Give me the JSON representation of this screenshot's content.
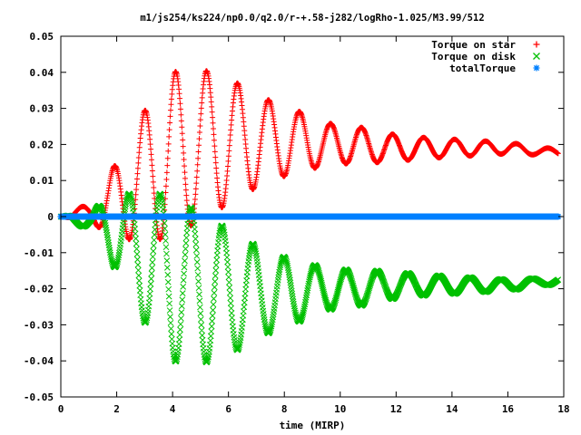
{
  "chart_data": {
    "type": "scatter",
    "title": "m1/js254/ks224/np0.0/q2.0/r-+.58-j282/logRho-1.025/M3.99/512",
    "xlabel": "time (MIRP)",
    "ylabel": "",
    "xlim": [
      0,
      18
    ],
    "ylim": [
      -0.05,
      0.05
    ],
    "x_ticks": [
      "0",
      "2",
      "4",
      "6",
      "8",
      "10",
      "12",
      "14",
      "16",
      "18"
    ],
    "y_ticks": [
      "0.05",
      "0.04",
      "0.03",
      "0.02",
      "0.01",
      "0",
      "-0.01",
      "-0.02",
      "-0.03",
      "-0.04",
      "-0.05"
    ],
    "grid": false,
    "legend_position": "top-right",
    "series": [
      {
        "name": "Torque on star",
        "marker": "+",
        "color": "#ff0000",
        "envelope": {
          "period": 1.11,
          "t": [
            0,
            0.5,
            1.0,
            1.7,
            2.8,
            3.9,
            5.0,
            6.1,
            7.2,
            8.3,
            9.4,
            10.6,
            11.7,
            12.8,
            13.9,
            15.0,
            16.1,
            17.2,
            17.8
          ],
          "mean": [
            0,
            0.001,
            0.001,
            0.003,
            0.01,
            0.017,
            0.02,
            0.021,
            0.021,
            0.021,
            0.02,
            0.02,
            0.019,
            0.019,
            0.019,
            0.019,
            0.019,
            0.018,
            0.018
          ],
          "amplitude": [
            0,
            0.0015,
            0.002,
            0.008,
            0.017,
            0.023,
            0.021,
            0.017,
            0.012,
            0.009,
            0.006,
            0.005,
            0.004,
            0.003,
            0.0025,
            0.002,
            0.0015,
            0.001,
            0.001
          ]
        }
      },
      {
        "name": "Torque on disk",
        "marker": "x",
        "color": "#00c000",
        "envelope": {
          "period": 1.11,
          "t": [
            0,
            0.5,
            1.0,
            1.7,
            2.8,
            3.9,
            5.0,
            6.1,
            7.2,
            8.3,
            9.4,
            10.6,
            11.7,
            12.8,
            13.9,
            15.0,
            16.1,
            17.2,
            17.8
          ],
          "mean": [
            0,
            -0.001,
            -0.001,
            -0.003,
            -0.01,
            -0.017,
            -0.02,
            -0.021,
            -0.021,
            -0.021,
            -0.02,
            -0.02,
            -0.019,
            -0.019,
            -0.019,
            -0.019,
            -0.019,
            -0.018,
            -0.018
          ],
          "amplitude": [
            0,
            0.0015,
            0.002,
            0.008,
            0.017,
            0.023,
            0.021,
            0.017,
            0.012,
            0.009,
            0.006,
            0.005,
            0.004,
            0.003,
            0.0025,
            0.002,
            0.0015,
            0.001,
            0.001
          ]
        }
      },
      {
        "name": "totalTorque",
        "marker": "*",
        "color": "#0080ff",
        "value": 0
      }
    ]
  }
}
